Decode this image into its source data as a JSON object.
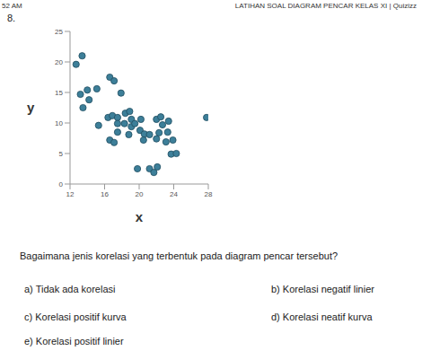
{
  "header": {
    "time": "52 AM",
    "title": "LATIHAN SOAL DIAGRAM PENCAR KELAS XI | Quizizz"
  },
  "question": {
    "number": "8.",
    "text": "Bagaimana jenis korelasi yang terbentuk pada diagram pencar tersebut?",
    "options": [
      "a)  Tidak ada korelasi",
      "b)  Korelasi negatif linier",
      "c)  Korelasi positif kurva",
      "d)  Korelasi neatif kurva",
      "e)  Korelasi positif linier"
    ]
  },
  "chart_data": {
    "type": "scatter",
    "x_label": "x",
    "y_label": "y",
    "color": "#3d7f99",
    "marker": "circle",
    "xlim": [
      12,
      28
    ],
    "xticks": [
      12,
      16,
      20,
      24,
      28
    ],
    "ylim": [
      0,
      25
    ],
    "yticks": [
      0,
      5,
      10,
      15,
      20,
      25
    ],
    "grid": false,
    "x": [
      12.7,
      13.4,
      13.2,
      13.5,
      14.0,
      14.2,
      15.1,
      15.3,
      16.4,
      16.6,
      17.1,
      16.9,
      17.5,
      17.5,
      17.5,
      16.6,
      17.1,
      17.9,
      18.3,
      18.4,
      18.9,
      19.1,
      19.1,
      18.8,
      19.5,
      20.2,
      20.1,
      20.6,
      20.5,
      19.8,
      21.2,
      21.2,
      21.7,
      22.1,
      22.0,
      22.0,
      22.3,
      22.5,
      22.7,
      23.1,
      23.3,
      23.4,
      23.9,
      23.7,
      24.3,
      27.8
    ],
    "values": [
      19.6,
      21.0,
      14.7,
      12.5,
      15.4,
      13.8,
      15.6,
      9.6,
      10.9,
      17.5,
      16.9,
      11.2,
      10.9,
      9.9,
      8.5,
      7.2,
      6.8,
      14.9,
      9.9,
      11.6,
      11.9,
      10.6,
      9.4,
      8.1,
      9.9,
      10.6,
      8.8,
      8.2,
      7.2,
      2.5,
      8.1,
      2.5,
      1.9,
      2.8,
      10.6,
      7.4,
      8.4,
      11.0,
      9.7,
      6.9,
      8.5,
      10.3,
      7.2,
      4.9,
      5.0,
      10.9
    ]
  }
}
